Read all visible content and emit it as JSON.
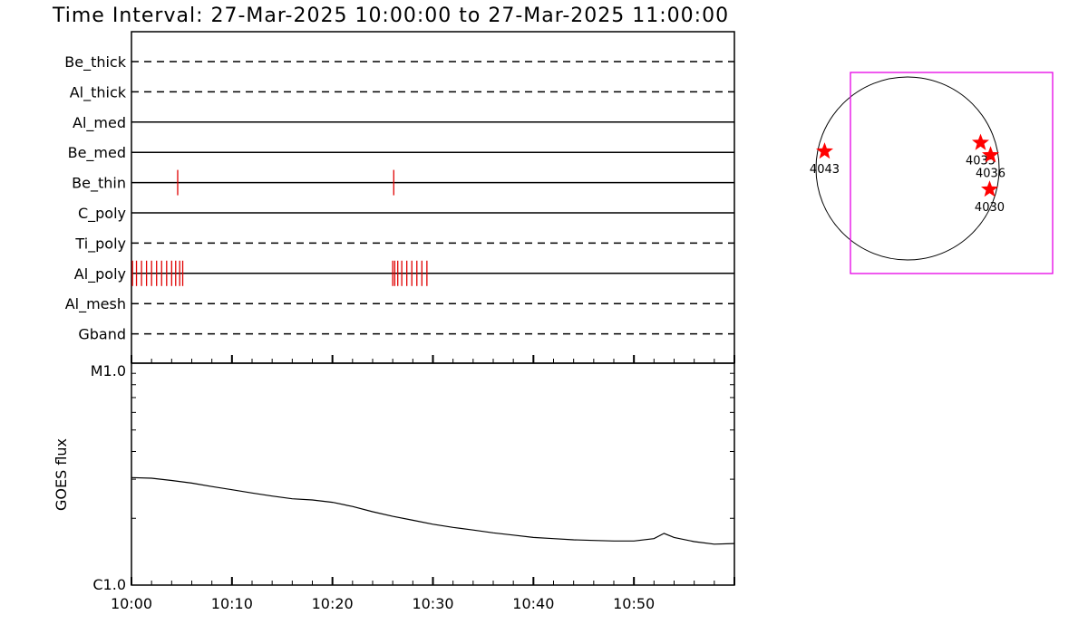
{
  "title": "Time Interval: 27-Mar-2025 10:00:00 to 27-Mar-2025 11:00:00",
  "chart_data": [
    {
      "type": "event-timeline",
      "x_range": [
        "10:00",
        "11:00"
      ],
      "channels": [
        {
          "name": "Be_thick",
          "style": "dashed",
          "events": []
        },
        {
          "name": "Al_thick",
          "style": "dashed",
          "events": []
        },
        {
          "name": "Al_med",
          "style": "solid",
          "events": []
        },
        {
          "name": "Be_med",
          "style": "solid",
          "events": []
        },
        {
          "name": "Be_thin",
          "style": "solid",
          "events": [
            4.6,
            26.1
          ]
        },
        {
          "name": "C_poly",
          "style": "solid",
          "events": []
        },
        {
          "name": "Ti_poly",
          "style": "dashed",
          "events": []
        },
        {
          "name": "Al_poly",
          "style": "solid",
          "events": [
            0.1,
            0.5,
            1.0,
            1.5,
            2.0,
            2.5,
            3.0,
            3.5,
            4.0,
            4.4,
            4.8,
            5.1,
            26.0,
            26.2,
            26.5,
            26.9,
            27.4,
            27.9,
            28.4,
            28.9,
            29.4
          ]
        },
        {
          "name": "Al_mesh",
          "style": "dashed",
          "events": []
        },
        {
          "name": "Gband",
          "style": "dashed",
          "events": []
        }
      ],
      "event_color": "#e00000"
    },
    {
      "type": "line",
      "ylabel": "GOES flux",
      "y_scale": "log",
      "y_ticks": [
        "M1.0",
        "C1.0"
      ],
      "ylim": [
        1e-06,
        1e-05
      ],
      "x_ticks": [
        "10:00",
        "10:10",
        "10:20",
        "10:30",
        "10:40",
        "10:50"
      ],
      "x_minutes": [
        0,
        2,
        4,
        6,
        8,
        10,
        12,
        14,
        16,
        18,
        20,
        22,
        24,
        26,
        28,
        30,
        32,
        34,
        36,
        38,
        40,
        42,
        44,
        46,
        48,
        50,
        52,
        53,
        54,
        56,
        58,
        60
      ],
      "y_values": [
        3.05e-06,
        3.03e-06,
        2.96e-06,
        2.88e-06,
        2.78e-06,
        2.69e-06,
        2.6e-06,
        2.52e-06,
        2.45e-06,
        2.42e-06,
        2.36e-06,
        2.26e-06,
        2.14e-06,
        2.04e-06,
        1.96e-06,
        1.88e-06,
        1.82e-06,
        1.77e-06,
        1.72e-06,
        1.68e-06,
        1.64e-06,
        1.62e-06,
        1.6e-06,
        1.59e-06,
        1.58e-06,
        1.58e-06,
        1.62e-06,
        1.71e-06,
        1.64e-06,
        1.57e-06,
        1.53e-06,
        1.54e-06
      ]
    },
    {
      "type": "scatter",
      "description_kind": "solar-disk-map",
      "marker_color": "#ff0000",
      "box_color": "#e600e6",
      "regions": [
        {
          "label": "4043",
          "x": -870,
          "y": 180
        },
        {
          "label": "4035",
          "x": 765,
          "y": 270
        },
        {
          "label": "4036",
          "x": 870,
          "y": 140
        },
        {
          "label": "4030",
          "x": 860,
          "y": -220
        }
      ]
    }
  ]
}
